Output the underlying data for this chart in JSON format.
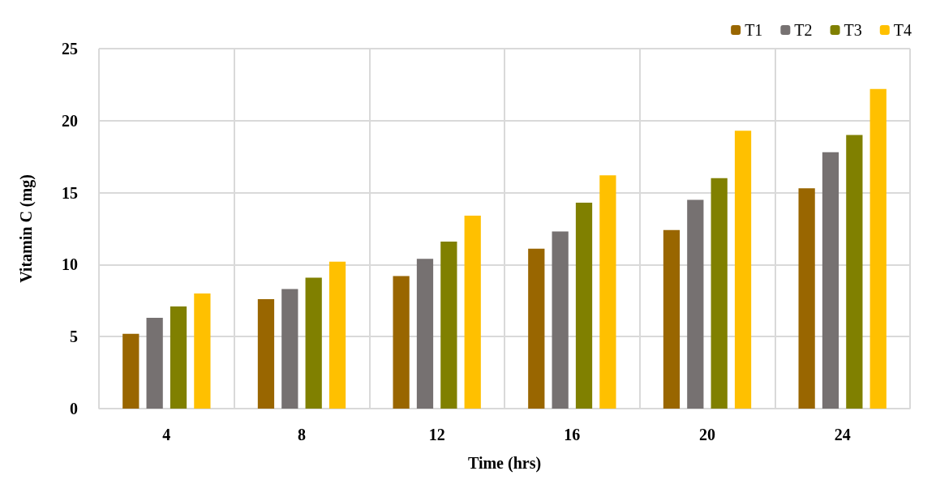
{
  "chart_data": {
    "type": "bar",
    "xlabel": "Time (hrs)",
    "ylabel": "Vitamin C (mg)",
    "categories": [
      "4",
      "8",
      "12",
      "16",
      "20",
      "24"
    ],
    "series": [
      {
        "name": "T1",
        "color": "#996600",
        "values": [
          5.2,
          7.6,
          9.2,
          11.1,
          12.4,
          15.3
        ]
      },
      {
        "name": "T2",
        "color": "#767171",
        "values": [
          6.3,
          8.3,
          10.4,
          12.3,
          14.5,
          17.8
        ]
      },
      {
        "name": "T3",
        "color": "#808000",
        "values": [
          7.1,
          9.1,
          11.6,
          14.3,
          16.0,
          19.0
        ]
      },
      {
        "name": "T4",
        "color": "#ffc000",
        "values": [
          8.0,
          10.2,
          13.4,
          16.2,
          19.3,
          22.2
        ]
      }
    ],
    "ylim": [
      0,
      25
    ],
    "yticks": [
      0,
      5,
      10,
      15,
      20,
      25
    ],
    "grid": true,
    "legend": "top right"
  }
}
